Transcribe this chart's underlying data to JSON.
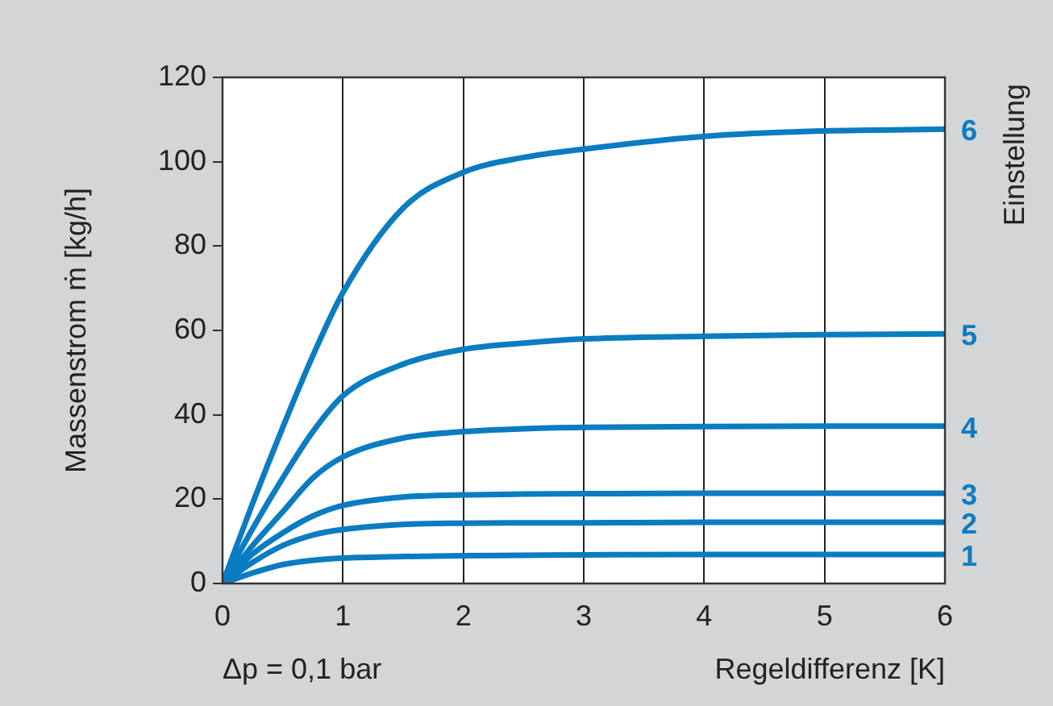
{
  "chart_data": {
    "type": "line",
    "xlabel": "Regeldifferenz [K]",
    "ylabel": "Massenstrom ṁ [kg/h]",
    "legend_title": "Einstellung",
    "annotations": [
      "Δp = 0,1 bar"
    ],
    "x": [
      0,
      0.25,
      0.5,
      0.75,
      1,
      1.5,
      2,
      2.5,
      3,
      4,
      5,
      6
    ],
    "series": [
      {
        "name": "6",
        "color": "#0a7cc1",
        "values": [
          0,
          19,
          37,
          54,
          69,
          89,
          97.5,
          101,
          103,
          106,
          107.3,
          107.7
        ]
      },
      {
        "name": "5",
        "color": "#0a7cc1",
        "values": [
          0,
          13,
          25,
          36,
          44.5,
          52,
          55.5,
          57,
          58,
          58.6,
          59,
          59.2
        ]
      },
      {
        "name": "4",
        "color": "#0a7cc1",
        "values": [
          0,
          9,
          17,
          25,
          30,
          34.5,
          36,
          36.7,
          37,
          37.2,
          37.3,
          37.3
        ]
      },
      {
        "name": "3",
        "color": "#0a7cc1",
        "values": [
          0,
          7,
          12,
          16,
          18.5,
          20.5,
          21,
          21.2,
          21.3,
          21.4,
          21.4,
          21.4
        ]
      },
      {
        "name": "2",
        "color": "#0a7cc1",
        "values": [
          0,
          5,
          9,
          11.5,
          12.8,
          14,
          14.3,
          14.4,
          14.4,
          14.5,
          14.5,
          14.5
        ]
      },
      {
        "name": "1",
        "color": "#0a7cc1",
        "values": [
          0,
          2.5,
          4.5,
          5.5,
          6,
          6.4,
          6.6,
          6.7,
          6.8,
          6.9,
          6.9,
          6.9
        ]
      }
    ],
    "xlim": [
      0,
      6
    ],
    "xticks": [
      0,
      1,
      2,
      3,
      4,
      5,
      6
    ],
    "ylim": [
      0,
      120
    ],
    "yticks": [
      0,
      20,
      40,
      60,
      80,
      100,
      120
    ],
    "grid": "x",
    "legend": "right",
    "marker": "none",
    "line_style": "solid"
  }
}
